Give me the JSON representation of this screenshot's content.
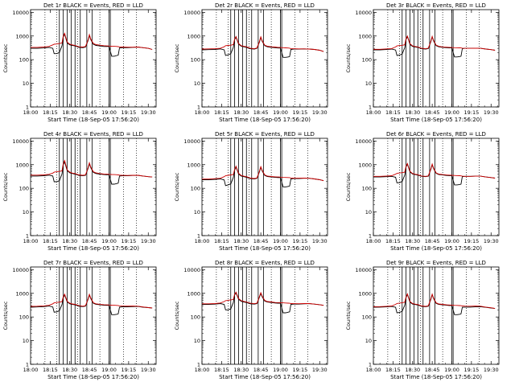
{
  "chart_data": {
    "type": "line",
    "layout": "3x3 grid",
    "common": {
      "xlabel": "Start Time (18-Sep-05 17:56:20)",
      "ylabel": "Counts/sec",
      "x_ticks": [
        "18:00",
        "18:15",
        "18:30",
        "18:45",
        "19:00",
        "19:15",
        "19:30"
      ],
      "x_tick_minutes": [
        0,
        15,
        30,
        45,
        60,
        75,
        90
      ],
      "xlim_minutes": [
        0,
        96
      ],
      "y_scale": "log",
      "ylim": [
        1,
        13000
      ],
      "y_ticks": [
        1,
        10,
        100,
        1000,
        10000
      ],
      "y_tick_labels": [
        "1",
        "10",
        "100",
        "1000",
        "10000"
      ],
      "dotted_vertical_lines_minutes": [
        11,
        20,
        36,
        53,
        71,
        81
      ],
      "solid_vertical_lines_minutes": [
        22,
        25,
        28,
        31,
        34,
        38,
        43,
        47,
        60,
        61
      ],
      "x_minutes": [
        0,
        5,
        10,
        14,
        17,
        18,
        20,
        22,
        24,
        25,
        26,
        28,
        30,
        32,
        34,
        37,
        40,
        42,
        44,
        45,
        46,
        48,
        50,
        53,
        56,
        58,
        59,
        60,
        62,
        64,
        66,
        67,
        68,
        70,
        74,
        78,
        82,
        86,
        90,
        93
      ]
    },
    "panels": [
      {
        "title": "Det 1r BLACK = Events, RED = LLD",
        "series": [
          {
            "color": "#000000",
            "values": [
              300,
              300,
              310,
              330,
              300,
              180,
              180,
              200,
              380,
              900,
              1200,
              500,
              420,
              400,
              380,
              330,
              320,
              340,
              650,
              1050,
              700,
              450,
              400,
              380,
              360,
              360,
              360,
              360,
              140,
              140,
              150,
              155,
              310,
              320,
              320,
              330,
              340,
              320,
              300,
              270
            ]
          },
          {
            "color": "#cc0000",
            "values": [
              330,
              330,
              340,
              360,
              420,
              450,
              460,
              480,
              500,
              1000,
              1300,
              550,
              450,
              420,
              400,
              350,
              340,
              360,
              700,
              1150,
              750,
              480,
              430,
              410,
              390,
              380,
              380,
              375,
              370,
              365,
              360,
              355,
              345,
              340,
              335,
              335,
              340,
              320,
              300,
              270
            ]
          }
        ]
      },
      {
        "title": "Det 2r BLACK = Events, RED = LLD",
        "series": [
          {
            "color": "#000000",
            "values": [
              260,
              265,
              270,
              285,
              260,
              150,
              160,
              180,
              330,
              700,
              900,
              450,
              370,
              350,
              330,
              290,
              280,
              300,
              560,
              880,
              600,
              390,
              350,
              330,
              320,
              310,
              310,
              310,
              125,
              125,
              130,
              135,
              270,
              280,
              280,
              285,
              280,
              270,
              250,
              220
            ]
          },
          {
            "color": "#cc0000",
            "values": [
              280,
              285,
              290,
              300,
              350,
              390,
              400,
              410,
              430,
              750,
              950,
              480,
              390,
              365,
              350,
              300,
              290,
              310,
              600,
              920,
              640,
              410,
              370,
              350,
              340,
              330,
              330,
              325,
              320,
              315,
              310,
              305,
              295,
              290,
              285,
              285,
              280,
              270,
              250,
              220
            ]
          }
        ]
      },
      {
        "title": "Det 3r BLACK = Events, RED = LLD",
        "series": [
          {
            "color": "#000000",
            "values": [
              260,
              260,
              270,
              280,
              255,
              150,
              155,
              175,
              320,
              720,
              950,
              440,
              360,
              345,
              330,
              290,
              280,
              295,
              580,
              920,
              620,
              390,
              350,
              330,
              320,
              315,
              315,
              315,
              130,
              130,
              135,
              140,
              290,
              300,
              300,
              305,
              300,
              280,
              265,
              250
            ]
          },
          {
            "color": "#cc0000",
            "values": [
              275,
              275,
              285,
              295,
              345,
              380,
              395,
              405,
              425,
              780,
              1000,
              470,
              380,
              360,
              345,
              300,
              290,
              305,
              620,
              960,
              660,
              410,
              365,
              345,
              335,
              330,
              330,
              325,
              320,
              318,
              315,
              312,
              305,
              300,
              300,
              305,
              300,
              280,
              265,
              250
            ]
          }
        ]
      },
      {
        "title": "Det 4r BLACK = Events, RED = LLD",
        "series": [
          {
            "color": "#000000",
            "values": [
              330,
              330,
              340,
              360,
              330,
              190,
              190,
              210,
              400,
              1000,
              1300,
              560,
              450,
              420,
              400,
              350,
              340,
              355,
              700,
              1100,
              740,
              470,
              420,
              400,
              380,
              375,
              375,
              375,
              150,
              150,
              160,
              165,
              330,
              340,
              340,
              350,
              355,
              330,
              310,
              300
            ]
          },
          {
            "color": "#cc0000",
            "values": [
              360,
              360,
              370,
              390,
              440,
              480,
              500,
              520,
              540,
              1100,
              1500,
              600,
              480,
              440,
              420,
              370,
              355,
              370,
              760,
              1200,
              800,
              500,
              450,
              420,
              400,
              395,
              395,
              390,
              385,
              380,
              375,
              370,
              360,
              355,
              350,
              355,
              355,
              330,
              310,
              300
            ]
          }
        ]
      },
      {
        "title": "Det 5r BLACK = Events, RED = LLD",
        "series": [
          {
            "color": "#000000",
            "values": [
              230,
              230,
              240,
              250,
              225,
              130,
              140,
              155,
              290,
              580,
              800,
              400,
              330,
              310,
              295,
              260,
              250,
              265,
              500,
              780,
              540,
              350,
              315,
              300,
              290,
              285,
              285,
              285,
              115,
              115,
              120,
              125,
              250,
              260,
              260,
              265,
              265,
              250,
              230,
              210
            ]
          },
          {
            "color": "#cc0000",
            "values": [
              245,
              245,
              255,
              265,
              310,
              340,
              355,
              370,
              385,
              640,
              860,
              430,
              350,
              325,
              310,
              270,
              260,
              275,
              540,
              820,
              580,
              370,
              330,
              315,
              305,
              300,
              300,
              295,
              290,
              288,
              285,
              282,
              275,
              270,
              268,
              270,
              265,
              250,
              230,
              210
            ]
          }
        ]
      },
      {
        "title": "Det 6r BLACK = Events, RED = LLD",
        "series": [
          {
            "color": "#000000",
            "values": [
              300,
              300,
              310,
              320,
              295,
              170,
              175,
              195,
              360,
              800,
              1050,
              490,
              400,
              380,
              360,
              320,
              310,
              325,
              640,
              1000,
              680,
              430,
              385,
              365,
              350,
              345,
              345,
              345,
              140,
              140,
              145,
              150,
              310,
              320,
              320,
              325,
              325,
              300,
              285,
              270
            ]
          },
          {
            "color": "#cc0000",
            "values": [
              320,
              320,
              330,
              340,
              395,
              430,
              445,
              460,
              480,
              870,
              1120,
              520,
              420,
              395,
              375,
              330,
              320,
              335,
              680,
              1060,
              720,
              450,
              400,
              380,
              365,
              360,
              360,
              355,
              350,
              345,
              340,
              335,
              325,
              320,
              320,
              325,
              325,
              300,
              285,
              270
            ]
          }
        ]
      },
      {
        "title": "Det 7r BLACK = Events, RED = LLD",
        "series": [
          {
            "color": "#000000",
            "values": [
              260,
              265,
              275,
              290,
              265,
              160,
              165,
              185,
              330,
              650,
              850,
              430,
              360,
              340,
              325,
              285,
              275,
              290,
              560,
              860,
              600,
              380,
              345,
              330,
              315,
              310,
              310,
              310,
              125,
              125,
              130,
              135,
              260,
              270,
              270,
              275,
              280,
              260,
              250,
              240
            ]
          },
          {
            "color": "#cc0000",
            "values": [
              280,
              285,
              295,
              310,
              360,
              395,
              410,
              425,
              445,
              710,
              920,
              460,
              380,
              355,
              340,
              300,
              285,
              300,
              600,
              910,
              640,
              400,
              360,
              345,
              330,
              325,
              325,
              320,
              315,
              312,
              308,
              305,
              295,
              290,
              288,
              290,
              285,
              265,
              250,
              240
            ]
          }
        ]
      },
      {
        "title": "Det 8r BLACK = Events, RED = LLD",
        "series": [
          {
            "color": "#000000",
            "values": [
              340,
              340,
              350,
              370,
              340,
              200,
              200,
              220,
              410,
              850,
              1050,
              560,
              460,
              430,
              410,
              360,
              350,
              365,
              700,
              1000,
              720,
              470,
              430,
              410,
              390,
              385,
              385,
              385,
              150,
              150,
              160,
              165,
              340,
              350,
              350,
              360,
              365,
              350,
              330,
              310
            ]
          },
          {
            "color": "#cc0000",
            "values": [
              360,
              360,
              370,
              390,
              450,
              490,
              510,
              530,
              550,
              920,
              1120,
              600,
              490,
              455,
              430,
              380,
              365,
              380,
              750,
              1060,
              770,
              500,
              450,
              430,
              410,
              405,
              405,
              400,
              395,
              390,
              385,
              380,
              370,
              365,
              362,
              368,
              370,
              350,
              330,
              310
            ]
          }
        ]
      },
      {
        "title": "Det 9r BLACK = Events, RED = LLD",
        "series": [
          {
            "color": "#000000",
            "values": [
              260,
              262,
              270,
              280,
              258,
              150,
              155,
              175,
              315,
              660,
              900,
              420,
              350,
              335,
              320,
              280,
              272,
              288,
              560,
              880,
              600,
              375,
              340,
              325,
              312,
              305,
              305,
              305,
              125,
              125,
              130,
              135,
              255,
              262,
              262,
              268,
              272,
              255,
              240,
              228
            ]
          },
          {
            "color": "#cc0000",
            "values": [
              272,
              275,
              282,
              292,
              340,
              372,
              388,
              402,
              420,
              700,
              950,
              450,
              370,
              350,
              335,
              292,
              282,
              298,
              595,
              920,
              635,
              395,
              355,
              340,
              326,
              320,
              320,
              315,
              310,
              307,
              304,
              300,
              292,
              288,
              286,
              290,
              286,
              262,
              245,
              228
            ]
          }
        ]
      }
    ]
  }
}
